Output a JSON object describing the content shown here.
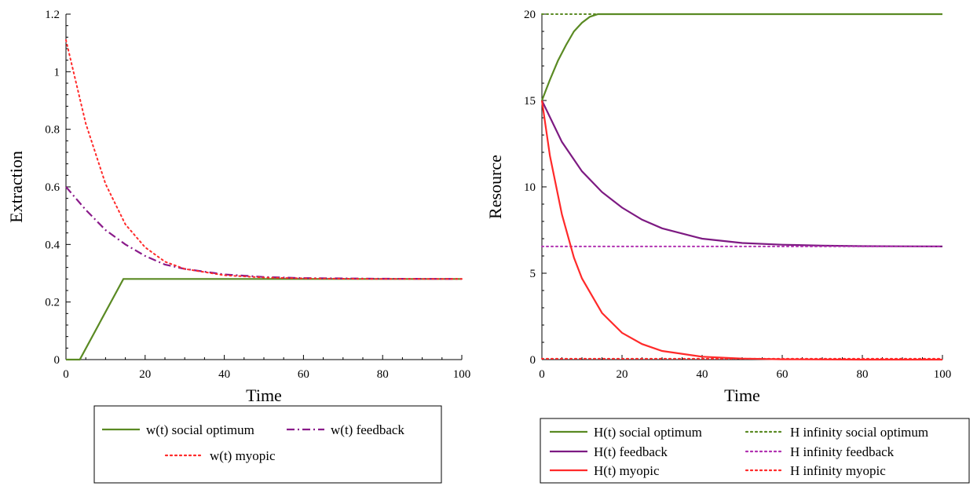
{
  "chart_data": [
    {
      "type": "line",
      "xlabel": "Time",
      "ylabel": "Extraction",
      "xlim": [
        0,
        100
      ],
      "ylim": [
        0,
        1.2
      ],
      "xticks": [
        "0",
        "20",
        "40",
        "60",
        "80",
        "100"
      ],
      "yticks": [
        "0",
        "0.2",
        "0.4",
        "0.6",
        "0.8",
        "1",
        "1.2"
      ],
      "grid": false,
      "legend_position": "bottom",
      "series": [
        {
          "name": "w(t) social optimum",
          "color": "#5a8a23",
          "style": "solid",
          "x": [
            0,
            3.5,
            14.5,
            20,
            40,
            60,
            80,
            100
          ],
          "y": [
            0,
            0,
            0.28,
            0.28,
            0.28,
            0.28,
            0.28,
            0.28
          ]
        },
        {
          "name": "w(t) feedback",
          "color": "#8a1a8a",
          "style": "dashdot",
          "x": [
            0,
            5,
            10,
            15,
            20,
            25,
            30,
            40,
            50,
            60,
            80,
            100
          ],
          "y": [
            0.6,
            0.52,
            0.45,
            0.4,
            0.36,
            0.33,
            0.315,
            0.296,
            0.287,
            0.283,
            0.281,
            0.28
          ]
        },
        {
          "name": "w(t) myopic",
          "color": "#ff2a2a",
          "style": "dotted",
          "x": [
            0,
            5,
            10,
            15,
            20,
            25,
            30,
            40,
            50,
            60,
            80,
            100
          ],
          "y": [
            1.11,
            0.82,
            0.61,
            0.47,
            0.39,
            0.34,
            0.315,
            0.293,
            0.285,
            0.282,
            0.28,
            0.28
          ]
        }
      ]
    },
    {
      "type": "line",
      "xlabel": "Time",
      "ylabel": "Resource",
      "xlim": [
        0,
        100
      ],
      "ylim": [
        0,
        20
      ],
      "xticks": [
        "0",
        "20",
        "40",
        "60",
        "80",
        "100"
      ],
      "yticks": [
        "0",
        "5",
        "10",
        "15",
        "20"
      ],
      "grid": false,
      "legend_position": "bottom",
      "series": [
        {
          "name": "H(t) social optimum",
          "color": "#5a8a23",
          "style": "solid",
          "x": [
            0,
            2,
            4,
            6,
            8,
            10,
            12,
            14,
            20,
            40,
            60,
            80,
            100
          ],
          "y": [
            15,
            16.2,
            17.3,
            18.2,
            19.0,
            19.5,
            19.85,
            20,
            20,
            20,
            20,
            20,
            20
          ]
        },
        {
          "name": "H infinity social optimum",
          "color": "#5a8a23",
          "style": "dotted",
          "x": [
            0,
            14
          ],
          "y": [
            20,
            20
          ]
        },
        {
          "name": "H(t) feedback",
          "color": "#7d1a82",
          "style": "solid",
          "x": [
            0,
            5,
            10,
            15,
            20,
            25,
            30,
            40,
            50,
            60,
            70,
            80,
            100
          ],
          "y": [
            15,
            12.6,
            10.9,
            9.7,
            8.8,
            8.1,
            7.6,
            7.0,
            6.75,
            6.65,
            6.6,
            6.57,
            6.55
          ]
        },
        {
          "name": "H infinity feedback",
          "color": "#b030b0",
          "style": "dotted",
          "x": [
            0,
            100
          ],
          "y": [
            6.55,
            6.55
          ]
        },
        {
          "name": "H(t) myopic",
          "color": "#ff2a2a",
          "style": "solid",
          "x": [
            0,
            2,
            5,
            8,
            10,
            15,
            20,
            25,
            30,
            40,
            50,
            60,
            80,
            100
          ],
          "y": [
            15,
            11.8,
            8.4,
            5.9,
            4.7,
            2.7,
            1.55,
            0.9,
            0.5,
            0.17,
            0.06,
            0.02,
            0.0,
            0.0
          ]
        },
        {
          "name": "H infinity myopic",
          "color": "#ff2a2a",
          "style": "dotted",
          "x": [
            0,
            100
          ],
          "y": [
            0.05,
            0.05
          ]
        }
      ]
    }
  ],
  "legends": [
    {
      "rows": [
        [
          {
            "name": "w(t) social optimum",
            "color": "#5a8a23",
            "style": "solid"
          },
          {
            "name": "w(t) feedback",
            "color": "#8a1a8a",
            "style": "dashdot"
          }
        ],
        [
          {
            "name": "w(t) myopic",
            "color": "#ff2a2a",
            "style": "dotted"
          }
        ]
      ]
    },
    {
      "rows": [
        [
          {
            "name": "H(t) social optimum",
            "color": "#5a8a23",
            "style": "solid"
          },
          {
            "name": "H infinity social optimum",
            "color": "#5a8a23",
            "style": "dotted"
          }
        ],
        [
          {
            "name": "H(t) feedback",
            "color": "#7d1a82",
            "style": "solid"
          },
          {
            "name": "H infinity feedback",
            "color": "#b030b0",
            "style": "dotted"
          }
        ],
        [
          {
            "name": "H(t) myopic",
            "color": "#ff2a2a",
            "style": "solid"
          },
          {
            "name": "H infinity myopic",
            "color": "#ff2a2a",
            "style": "dotted"
          }
        ]
      ]
    }
  ]
}
